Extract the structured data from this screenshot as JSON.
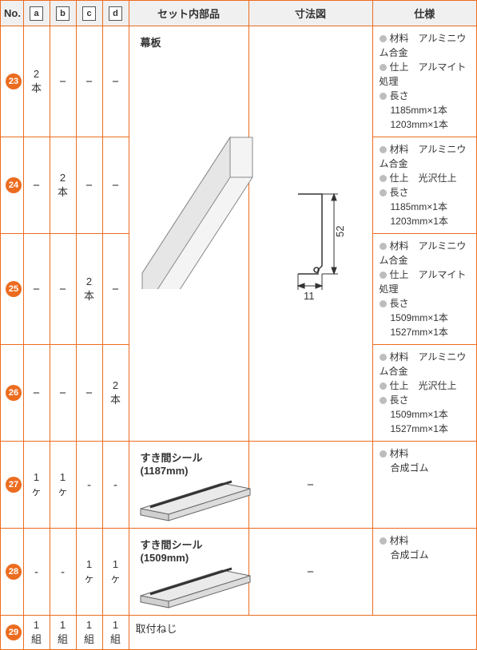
{
  "header": {
    "no": "No.",
    "a": "a",
    "b": "b",
    "c": "c",
    "d": "d",
    "set": "セット内部品",
    "dim": "寸法図",
    "spec": "仕様"
  },
  "parts": {
    "makuita_title": "幕板",
    "seal1_title": "すき間シール",
    "seal1_len": "(1187mm)",
    "seal2_title": "すき間シール",
    "seal2_len": "(1509mm)",
    "screw_title": "取付ねじ"
  },
  "dim": {
    "w": "11",
    "h": "52",
    "dash": "−"
  },
  "rows": [
    {
      "num": "23",
      "a": "2本",
      "b": "−",
      "c": "−",
      "d": "−",
      "spec": [
        {
          "t": "bul",
          "label": "材料",
          "val": "アルミニウム合金"
        },
        {
          "t": "bul",
          "label": "仕上",
          "val": "アルマイト処理"
        },
        {
          "t": "bul",
          "label": "長さ",
          "val": ""
        },
        {
          "t": "sub",
          "val": "1185mm×1本"
        },
        {
          "t": "sub",
          "val": "1203mm×1本"
        }
      ]
    },
    {
      "num": "24",
      "a": "−",
      "b": "2本",
      "c": "−",
      "d": "−",
      "spec": [
        {
          "t": "bul",
          "label": "材料",
          "val": "アルミニウム合金"
        },
        {
          "t": "bul",
          "label": "仕上",
          "val": "光沢仕上"
        },
        {
          "t": "bul",
          "label": "長さ",
          "val": ""
        },
        {
          "t": "sub",
          "val": "1185mm×1本"
        },
        {
          "t": "sub",
          "val": "1203mm×1本"
        }
      ]
    },
    {
      "num": "25",
      "a": "−",
      "b": "−",
      "c": "2本",
      "d": "−",
      "spec": [
        {
          "t": "bul",
          "label": "材料",
          "val": "アルミニウム合金"
        },
        {
          "t": "bul",
          "label": "仕上",
          "val": "アルマイト処理"
        },
        {
          "t": "bul",
          "label": "長さ",
          "val": ""
        },
        {
          "t": "sub",
          "val": "1509mm×1本"
        },
        {
          "t": "sub",
          "val": "1527mm×1本"
        }
      ]
    },
    {
      "num": "26",
      "a": "−",
      "b": "−",
      "c": "−",
      "d": "2本",
      "spec": [
        {
          "t": "bul",
          "label": "材料",
          "val": "アルミニウム合金"
        },
        {
          "t": "bul",
          "label": "仕上",
          "val": "光沢仕上"
        },
        {
          "t": "bul",
          "label": "長さ",
          "val": ""
        },
        {
          "t": "sub",
          "val": "1509mm×1本"
        },
        {
          "t": "sub",
          "val": "1527mm×1本"
        }
      ]
    },
    {
      "num": "27",
      "a": "1ヶ",
      "b": "1ヶ",
      "c": "-",
      "d": "-",
      "spec": [
        {
          "t": "bul",
          "label": "材料",
          "val": ""
        },
        {
          "t": "sub",
          "val": "合成ゴム"
        }
      ]
    },
    {
      "num": "28",
      "a": "-",
      "b": "-",
      "c": "1ヶ",
      "d": "1ヶ",
      "spec": [
        {
          "t": "bul",
          "label": "材料",
          "val": ""
        },
        {
          "t": "sub",
          "val": "合成ゴム"
        }
      ]
    },
    {
      "num": "29",
      "a": "1組",
      "b": "1組",
      "c": "1組",
      "d": "1組"
    }
  ],
  "colors": {
    "border": "#ec6c1f",
    "badge": "#ec6c1f",
    "headerbg": "#f0f0f0",
    "bullet": "#bdbdbd"
  }
}
